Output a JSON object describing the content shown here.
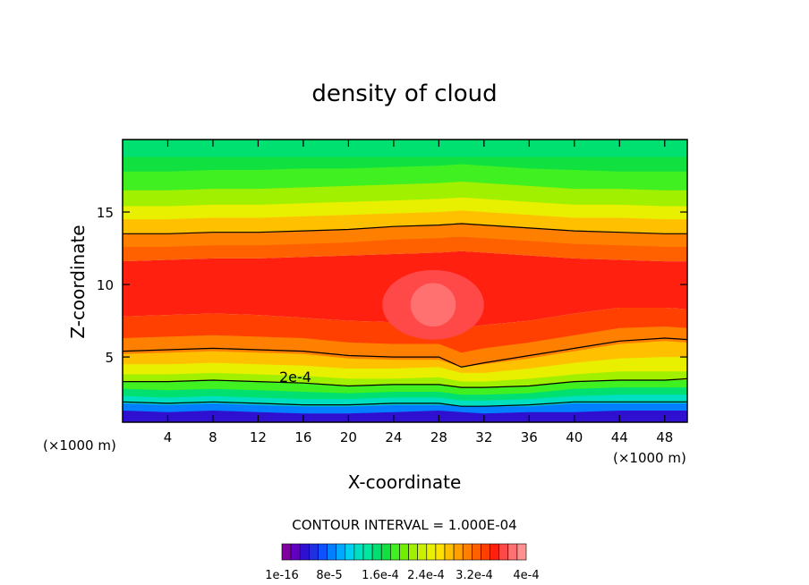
{
  "chart_data": {
    "type": "heatmap",
    "title": "density of cloud",
    "xlabel": "X-coordinate",
    "ylabel": "Z-coordinate",
    "x_unit_left": "(×1000 m)",
    "x_unit_right": "(×1000 m)",
    "xlim": [
      0,
      50
    ],
    "ylim": [
      0.5,
      20
    ],
    "x_ticks": [
      4,
      8,
      12,
      16,
      20,
      24,
      28,
      32,
      36,
      40,
      44,
      48
    ],
    "y_ticks": [
      5,
      10,
      15
    ],
    "contour_interval_text": "CONTOUR INTERVAL = 1.000E-04",
    "contour_label": "2e-4",
    "colorbar_labels": [
      "1e-16",
      "8e-5",
      "1.6e-4",
      "2.4e-4",
      "3.2e-4",
      "4e-4"
    ],
    "colorbar_colors": [
      "#8000a0",
      "#6000c0",
      "#3010d0",
      "#2030e0",
      "#1050ff",
      "#0080ff",
      "#00a8ff",
      "#00d0f0",
      "#00e0c0",
      "#00e8a0",
      "#00e070",
      "#10e040",
      "#40f020",
      "#70f000",
      "#a0f000",
      "#c8f000",
      "#e8f000",
      "#ffe000",
      "#ffc000",
      "#ffa000",
      "#ff8000",
      "#ff6000",
      "#ff4000",
      "#ff2010",
      "#ff4848",
      "#ff7070",
      "#ff9090"
    ],
    "series": [
      {
        "x": [
          0,
          4,
          8,
          12,
          16,
          20,
          24,
          28,
          30,
          32,
          36,
          40,
          44,
          48,
          50
        ],
        "y": [
          1.3,
          1.2,
          1.3,
          1.2,
          1.1,
          1.1,
          1.2,
          1.3,
          1.2,
          1.1,
          1.2,
          1.2,
          1.3,
          1.3,
          1.3
        ],
        "level_index": 2
      },
      {
        "x": [
          0,
          4,
          8,
          12,
          16,
          20,
          24,
          28,
          30,
          32,
          36,
          40,
          44,
          48,
          50
        ],
        "y": [
          1.8,
          1.7,
          1.8,
          1.7,
          1.6,
          1.6,
          1.7,
          1.7,
          1.6,
          1.6,
          1.6,
          1.8,
          1.8,
          1.8,
          1.8
        ],
        "level_index": 5
      },
      {
        "x": [
          0,
          4,
          8,
          12,
          16,
          20,
          24,
          28,
          30,
          32,
          36,
          40,
          44,
          48,
          50
        ],
        "y": [
          2.3,
          2.2,
          2.3,
          2.2,
          2.1,
          2.1,
          2.2,
          2.2,
          2.0,
          2.0,
          2.1,
          2.3,
          2.4,
          2.4,
          2.4
        ],
        "level_index": 8
      },
      {
        "x": [
          0,
          4,
          8,
          12,
          16,
          20,
          24,
          28,
          30,
          32,
          36,
          40,
          44,
          48,
          50
        ],
        "y": [
          2.8,
          2.7,
          2.8,
          2.7,
          2.6,
          2.5,
          2.6,
          2.6,
          2.4,
          2.4,
          2.5,
          2.8,
          2.9,
          2.9,
          2.9
        ],
        "level_index": 10
      },
      {
        "x": [
          0,
          4,
          8,
          12,
          16,
          20,
          24,
          28,
          30,
          32,
          36,
          40,
          44,
          48,
          50
        ],
        "y": [
          3.3,
          3.3,
          3.4,
          3.3,
          3.2,
          3.0,
          3.1,
          3.1,
          2.9,
          2.9,
          3.0,
          3.3,
          3.4,
          3.4,
          3.4
        ],
        "level_index": 12
      },
      {
        "x": [
          0,
          4,
          8,
          12,
          16,
          20,
          24,
          28,
          30,
          32,
          36,
          40,
          44,
          48,
          50
        ],
        "y": [
          3.8,
          3.8,
          3.9,
          3.8,
          3.7,
          3.5,
          3.5,
          3.6,
          3.3,
          3.3,
          3.5,
          3.8,
          4.0,
          4.0,
          4.0
        ],
        "level_index": 14
      },
      {
        "x": [
          0,
          4,
          8,
          12,
          16,
          20,
          24,
          28,
          30,
          32,
          36,
          40,
          44,
          48,
          50
        ],
        "y": [
          4.5,
          4.5,
          4.6,
          4.5,
          4.4,
          4.2,
          4.2,
          4.3,
          3.9,
          3.9,
          4.2,
          4.6,
          4.9,
          5.0,
          5.0
        ],
        "level_index": 16
      },
      {
        "x": [
          0,
          4,
          8,
          12,
          16,
          20,
          24,
          28,
          30,
          32,
          36,
          40,
          44,
          48,
          50
        ],
        "y": [
          5.2,
          5.3,
          5.4,
          5.3,
          5.2,
          4.9,
          4.8,
          4.8,
          4.3,
          4.5,
          4.9,
          5.4,
          5.9,
          6.1,
          6.0
        ],
        "level_index": 18
      },
      {
        "x": [
          0,
          4,
          8,
          12,
          16,
          20,
          24,
          28,
          30,
          32,
          36,
          40,
          44,
          48,
          50
        ],
        "y": [
          6.3,
          6.4,
          6.5,
          6.4,
          6.3,
          6.0,
          5.9,
          5.9,
          5.3,
          5.6,
          6.0,
          6.5,
          7.0,
          7.1,
          7.0
        ],
        "level_index": 20
      },
      {
        "x": [
          0,
          4,
          8,
          12,
          16,
          20,
          24,
          28,
          30,
          32,
          36,
          40,
          44,
          48,
          50
        ],
        "y": [
          7.8,
          7.9,
          8.0,
          7.9,
          7.7,
          7.5,
          7.4,
          7.4,
          7.0,
          7.2,
          7.5,
          8.0,
          8.4,
          8.4,
          8.3
        ],
        "level_index": 22
      },
      {
        "x": [
          0,
          4,
          8,
          12,
          16,
          20,
          24,
          28,
          30,
          32,
          36,
          40,
          44,
          48,
          50
        ],
        "y": [
          11.6,
          11.7,
          11.8,
          11.8,
          11.9,
          12.0,
          12.1,
          12.2,
          12.3,
          12.2,
          12.0,
          11.8,
          11.7,
          11.6,
          11.6
        ],
        "level_index": 21
      },
      {
        "x": [
          0,
          4,
          8,
          12,
          16,
          20,
          24,
          28,
          30,
          32,
          36,
          40,
          44,
          48,
          50
        ],
        "y": [
          12.6,
          12.6,
          12.7,
          12.7,
          12.8,
          12.9,
          13.1,
          13.2,
          13.3,
          13.2,
          13.0,
          12.8,
          12.7,
          12.6,
          12.6
        ],
        "level_index": 20
      },
      {
        "x": [
          0,
          4,
          8,
          12,
          16,
          20,
          24,
          28,
          30,
          32,
          36,
          40,
          44,
          48,
          50
        ],
        "y": [
          13.5,
          13.5,
          13.6,
          13.6,
          13.7,
          13.8,
          14.0,
          14.1,
          14.2,
          14.1,
          13.9,
          13.7,
          13.6,
          13.5,
          13.5
        ],
        "level_index": 18
      },
      {
        "x": [
          0,
          4,
          8,
          12,
          16,
          20,
          24,
          28,
          30,
          32,
          36,
          40,
          44,
          48,
          50
        ],
        "y": [
          14.5,
          14.5,
          14.6,
          14.6,
          14.7,
          14.8,
          14.9,
          15.0,
          15.1,
          15.0,
          14.8,
          14.6,
          14.6,
          14.5,
          14.5
        ],
        "level_index": 16
      },
      {
        "x": [
          0,
          4,
          8,
          12,
          16,
          20,
          24,
          28,
          30,
          32,
          36,
          40,
          44,
          48,
          50
        ],
        "y": [
          15.4,
          15.4,
          15.5,
          15.5,
          15.6,
          15.7,
          15.8,
          15.9,
          16.0,
          15.9,
          15.7,
          15.5,
          15.5,
          15.4,
          15.4
        ],
        "level_index": 14
      },
      {
        "x": [
          0,
          4,
          8,
          12,
          16,
          20,
          24,
          28,
          30,
          32,
          36,
          40,
          44,
          48,
          50
        ],
        "y": [
          16.5,
          16.5,
          16.6,
          16.6,
          16.7,
          16.8,
          16.9,
          17.0,
          17.1,
          17.0,
          16.8,
          16.6,
          16.6,
          16.5,
          16.5
        ],
        "level_index": 12
      },
      {
        "x": [
          0,
          4,
          8,
          12,
          16,
          20,
          24,
          28,
          30,
          32,
          36,
          40,
          44,
          48,
          50
        ],
        "y": [
          17.8,
          17.8,
          17.9,
          17.9,
          18.0,
          18.0,
          18.1,
          18.2,
          18.3,
          18.2,
          18.0,
          17.9,
          17.8,
          17.8,
          17.8
        ],
        "level_index": 11
      }
    ],
    "contour_lines": [
      {
        "x": [
          0,
          4,
          8,
          12,
          16,
          20,
          24,
          28,
          30,
          32,
          36,
          40,
          44,
          48,
          50
        ],
        "y": [
          13.5,
          13.5,
          13.6,
          13.6,
          13.7,
          13.8,
          14.0,
          14.1,
          14.2,
          14.1,
          13.9,
          13.7,
          13.6,
          13.5,
          13.5
        ]
      },
      {
        "x": [
          0,
          4,
          8,
          12,
          16,
          20,
          24,
          28,
          30,
          32,
          36,
          40,
          44,
          48,
          50
        ],
        "y": [
          5.4,
          5.5,
          5.6,
          5.5,
          5.4,
          5.1,
          5.0,
          5.0,
          4.3,
          4.6,
          5.1,
          5.6,
          6.1,
          6.3,
          6.2
        ]
      },
      {
        "x": [
          0,
          4,
          8,
          12,
          16,
          20,
          24,
          28,
          30,
          32,
          36,
          40,
          44,
          48,
          50
        ],
        "y": [
          3.3,
          3.3,
          3.4,
          3.3,
          3.2,
          3.0,
          3.1,
          3.1,
          2.9,
          2.9,
          3.0,
          3.3,
          3.4,
          3.4,
          3.5
        ]
      },
      {
        "x": [
          0,
          4,
          8,
          12,
          16,
          20,
          24,
          28,
          30,
          32,
          36,
          40,
          44,
          48,
          50
        ],
        "y": [
          1.9,
          1.8,
          1.9,
          1.8,
          1.7,
          1.7,
          1.8,
          1.8,
          1.6,
          1.6,
          1.7,
          1.9,
          1.9,
          1.9,
          1.9
        ]
      }
    ],
    "max_region": {
      "cx": 27.5,
      "cy": 8.6,
      "rx": 2.0,
      "ry": 1.5
    },
    "grid": false,
    "legend": "bottom"
  }
}
